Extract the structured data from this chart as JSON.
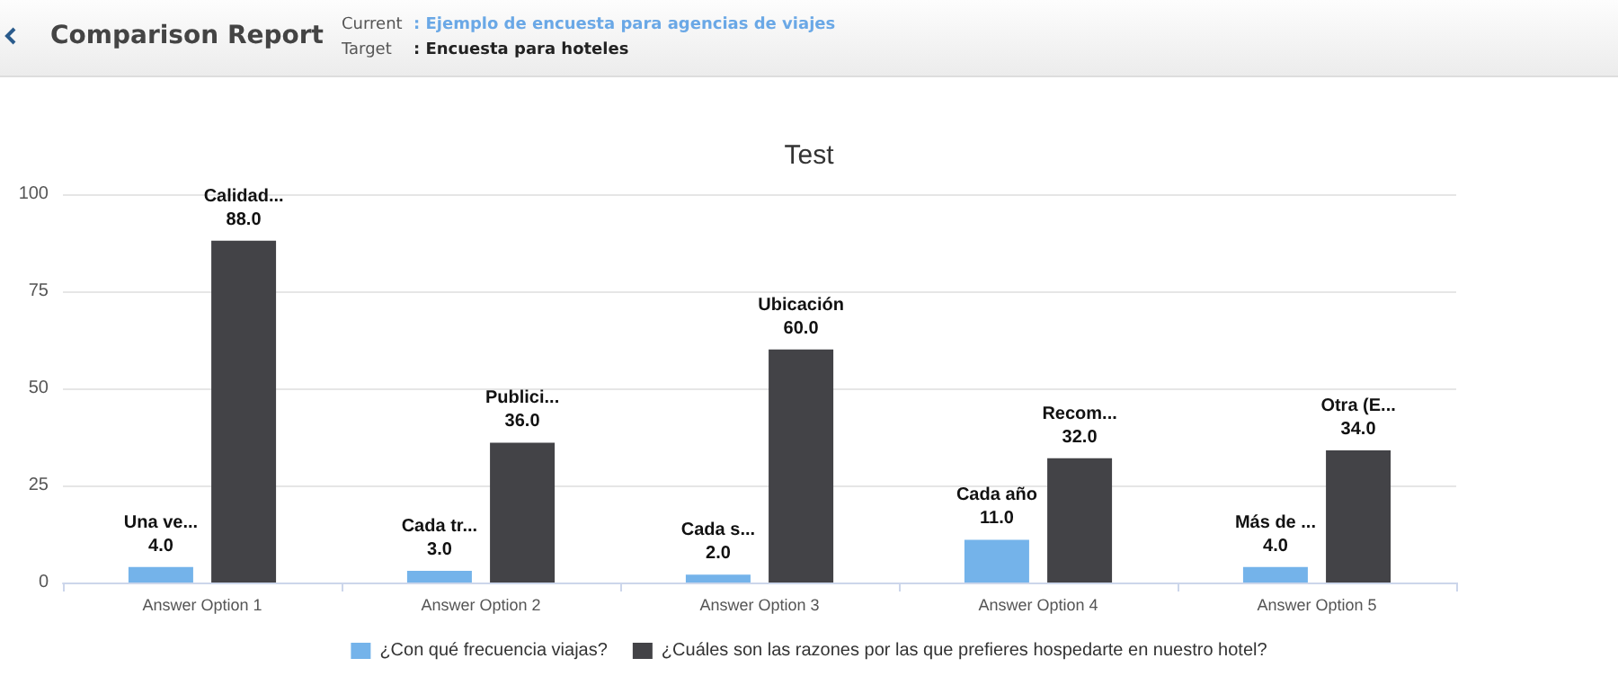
{
  "chart_data": {
    "type": "bar",
    "title": "Test",
    "annotations": [
      "Comparison Report",
      "Current",
      ": Ejemplo de encuesta para agencias de viajes",
      "Target",
      ": Encuesta para hoteles"
    ],
    "categories": [
      "Answer Option 1",
      "Answer Option 2",
      "Answer Option 3",
      "Answer Option 4",
      "Answer Option 5"
    ],
    "series": [
      {
        "name": "¿Con qué frecuencia viajas?",
        "color": "#74b3ea",
        "values": [
          4,
          3,
          2,
          11,
          4
        ],
        "value_labels": [
          "Una ve...\n4.0",
          "Cada tr...\n3.0",
          "Cada s...\n2.0",
          "Cada año\n11.0",
          "Más de ...\n4.0"
        ]
      },
      {
        "name": "¿Cuáles son las razones por las que prefieres hospedarte en nuestro hotel?",
        "color": "#434347",
        "values": [
          88,
          36,
          60,
          32,
          34
        ],
        "value_labels": [
          "Calidad...\n88.0",
          "Publici...\n36.0",
          "Ubicación\n60.0",
          "Recom...\n32.0",
          "Otra (E...\n34.0"
        ]
      }
    ],
    "ylim": [
      0,
      100
    ],
    "yticks": [
      0,
      25,
      50,
      75,
      100
    ],
    "grid": "y",
    "legend": "bottom"
  }
}
